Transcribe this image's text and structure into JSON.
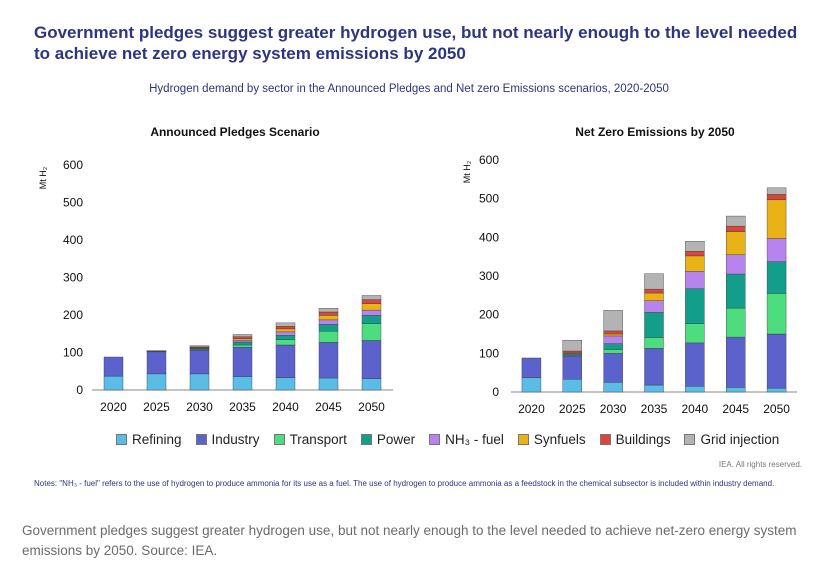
{
  "header": {
    "title": "Government pledges suggest greater hydrogen use, but not nearly enough to the level needed to achieve net zero energy system emissions by 2050",
    "subtitle": "Hydrogen demand by sector in the Announced Pledges and Net zero Emissions scenarios, 2020-2050"
  },
  "footer": {
    "credit": "IEA. All rights reserved.",
    "notes": "Notes: \"NH₃ - fuel\" refers to the use of hydrogen to produce ammonia for its use as a fuel. The use of hydrogen to produce ammonia as a feedstock in the chemical subsector is included within industry demand.",
    "caption": "Government pledges suggest greater hydrogen use, but not nearly enough to the level needed to achieve net-zero energy system emissions by 2050. Source: IEA."
  },
  "legend": [
    {
      "name": "Refining",
      "color": "#5bbde6"
    },
    {
      "name": "Industry",
      "color": "#5b62cc"
    },
    {
      "name": "Transport",
      "color": "#4ddc7e"
    },
    {
      "name": "Power",
      "color": "#139e8c"
    },
    {
      "name": "NH₃ - fuel",
      "color": "#b684ec"
    },
    {
      "name": "Synfuels",
      "color": "#e9b216"
    },
    {
      "name": "Buildings",
      "color": "#d8473c"
    },
    {
      "name": "Grid injection",
      "color": "#b3b3b3"
    }
  ],
  "chart_data": [
    {
      "type": "bar",
      "stacked": true,
      "title": "Announced Pledges Scenario",
      "ylabel": "Mt H₂",
      "xlabel": "",
      "ylim": [
        0,
        600
      ],
      "yticks": [
        0,
        100,
        200,
        300,
        400,
        500,
        600
      ],
      "categories": [
        "2020",
        "2025",
        "2030",
        "2035",
        "2040",
        "2045",
        "2050"
      ],
      "series": [
        {
          "name": "Refining",
          "values": [
            37,
            43,
            43,
            36,
            33,
            32,
            30
          ]
        },
        {
          "name": "Industry",
          "values": [
            51,
            59,
            63,
            78,
            87,
            95,
            102
          ]
        },
        {
          "name": "Transport",
          "values": [
            0,
            1,
            2,
            6,
            14,
            30,
            45
          ]
        },
        {
          "name": "Power",
          "values": [
            0,
            1,
            2,
            8,
            12,
            18,
            22
          ]
        },
        {
          "name": "NH₃ - fuel",
          "values": [
            0,
            0,
            2,
            5,
            9,
            12,
            14
          ]
        },
        {
          "name": "Synfuels",
          "values": [
            0,
            0,
            1,
            4,
            8,
            12,
            17
          ]
        },
        {
          "name": "Buildings",
          "values": [
            0,
            0,
            2,
            5,
            7,
            9,
            11
          ]
        },
        {
          "name": "Grid injection",
          "values": [
            0,
            1,
            3,
            6,
            9,
            10,
            11
          ]
        }
      ]
    },
    {
      "type": "bar",
      "stacked": true,
      "title": "Net Zero Emissions by 2050",
      "ylabel": "Mt H₂",
      "xlabel": "",
      "ylim": [
        0,
        600
      ],
      "yticks": [
        0,
        100,
        200,
        300,
        400,
        500,
        600
      ],
      "categories": [
        "2020",
        "2025",
        "2030",
        "2035",
        "2040",
        "2045",
        "2050"
      ],
      "series": [
        {
          "name": "Refining",
          "values": [
            37,
            33,
            25,
            18,
            15,
            12,
            10
          ]
        },
        {
          "name": "Industry",
          "values": [
            51,
            60,
            75,
            95,
            112,
            130,
            140
          ]
        },
        {
          "name": "Transport",
          "values": [
            0,
            2,
            10,
            28,
            50,
            75,
            105
          ]
        },
        {
          "name": "Power",
          "values": [
            0,
            3,
            15,
            65,
            90,
            88,
            82
          ]
        },
        {
          "name": "NH₃ - fuel",
          "values": [
            0,
            2,
            20,
            30,
            45,
            50,
            60
          ]
        },
        {
          "name": "Synfuels",
          "values": [
            0,
            1,
            5,
            20,
            40,
            60,
            100
          ]
        },
        {
          "name": "Buildings",
          "values": [
            0,
            5,
            8,
            10,
            12,
            14,
            14
          ]
        },
        {
          "name": "Grid injection",
          "values": [
            0,
            28,
            53,
            40,
            26,
            26,
            17
          ]
        }
      ]
    }
  ]
}
